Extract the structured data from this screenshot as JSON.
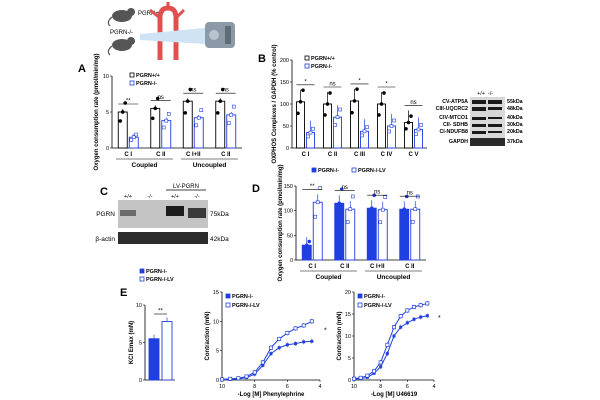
{
  "schematic": {
    "genotype_wt": "PGRN+/+",
    "genotype_ko": "PGRN-/-"
  },
  "panel_labels": {
    "A": "A",
    "B": "B",
    "C": "C",
    "D": "D",
    "E": "E"
  },
  "panelA": {
    "ylabel": "Oxygen consumption rate (pmol/min/mg)",
    "legend": [
      "PGRN+/+",
      "PGRN-/-"
    ],
    "xticks": [
      "C I",
      "C II",
      "C I+II",
      "C II"
    ],
    "groups": [
      "Coupled",
      "Uncoupled"
    ],
    "significance": [
      "**",
      "ns",
      "ns",
      "ns"
    ]
  },
  "panelB": {
    "ylabel": "OXPHOS Complexes / GAPDH (% control)",
    "legend": [
      "PGRN+/+",
      "PGRN-/-"
    ],
    "xticks": [
      "C I",
      "C II",
      "C III",
      "C IV",
      "C V"
    ],
    "significance": [
      "*",
      "ns",
      "*",
      "*",
      "ns"
    ],
    "blot_header": [
      "+/+",
      "-/-"
    ],
    "blot_left": [
      "CV-ATP5A",
      "CIII-UQCRC2",
      "CIV-MTCO1",
      "CII- SDHB",
      "CI-NDUFB8",
      "GAPDH"
    ],
    "blot_right": [
      "55kDa",
      "48kDa",
      "40kDa",
      "30kDa",
      "20kDa",
      "37kDa"
    ]
  },
  "panelC": {
    "title": "LV-PGRN",
    "lanes": [
      "+/+",
      "-/-",
      "+/+",
      "-/-"
    ],
    "rows": [
      "PGRN",
      "β-actin"
    ],
    "sizes": [
      "75kDa",
      "42kDa"
    ]
  },
  "panelD": {
    "ylabel": "Oxygen consumption rate (pmol/min/mg)",
    "legend": [
      "PGRN-/-",
      "PGRN-/-LV"
    ],
    "xticks": [
      "C I",
      "C II",
      "C I+II",
      "C II"
    ],
    "groups": [
      "Coupled",
      "Uncoupled"
    ],
    "significance": [
      "**",
      "ns",
      "ns",
      "ns"
    ]
  },
  "panelE": {
    "legend": [
      "PGRN-/-",
      "PGRN-/-LV"
    ],
    "kcl_ylabel": "KCl Emax (mN)",
    "kcl_sig": "**",
    "curve1_ylabel": "Contraction (mN)",
    "curve1_xlabel": "-Log [M] Phenylephrine",
    "curve1_sig": "*",
    "curve2_ylabel": "Contraction (mN)",
    "curve2_xlabel": "-Log [M] U46619",
    "curve2_sig": "*"
  },
  "chart_data": [
    {
      "type": "bar",
      "panel": "A",
      "categories": [
        "C I",
        "C II",
        "C I+II",
        "C II"
      ],
      "series": [
        {
          "name": "PGRN+/+",
          "values": [
            5,
            5.5,
            6.5,
            6.5
          ]
        },
        {
          "name": "PGRN-/-",
          "values": [
            1.5,
            3.8,
            4.2,
            4.6
          ]
        }
      ],
      "ylim": [
        0,
        10
      ]
    },
    {
      "type": "bar",
      "panel": "B",
      "categories": [
        "C I",
        "C II",
        "C III",
        "C IV",
        "C V"
      ],
      "series": [
        {
          "name": "PGRN+/+",
          "values": [
            105,
            100,
            107,
            100,
            58
          ]
        },
        {
          "name": "PGRN-/-",
          "values": [
            35,
            70,
            38,
            50,
            42
          ]
        }
      ],
      "ylim": [
        0,
        200
      ]
    },
    {
      "type": "bar",
      "panel": "D",
      "categories": [
        "C I",
        "C II",
        "C I+II",
        "C II"
      ],
      "series": [
        {
          "name": "PGRN-/-",
          "values": [
            30,
            115,
            105,
            103
          ]
        },
        {
          "name": "PGRN-/-LV",
          "values": [
            117,
            103,
            102,
            103
          ]
        }
      ],
      "ylim": [
        0,
        150
      ]
    },
    {
      "type": "bar",
      "panel": "E-KCl",
      "categories": [
        "PGRN-/-",
        "PGRN-/-LV"
      ],
      "values": [
        5.5,
        7.8
      ],
      "ylim": [
        0,
        10
      ]
    },
    {
      "type": "line",
      "panel": "E-Phenylephrine",
      "x": [
        10,
        9.5,
        9,
        8.5,
        8,
        7.5,
        7,
        6.5,
        6,
        5.5,
        5,
        4.5
      ],
      "series": [
        {
          "name": "PGRN-/-",
          "values": [
            0.1,
            0.1,
            0.2,
            0.4,
            1,
            2.5,
            4.5,
            5.5,
            6,
            6.2,
            6.5,
            6.6
          ]
        },
        {
          "name": "PGRN-/-LV",
          "values": [
            0.1,
            0.2,
            0.3,
            0.6,
            1.3,
            3,
            5.5,
            7,
            8,
            8.8,
            9.3,
            10
          ]
        }
      ],
      "xlim": [
        10,
        4
      ],
      "ylim": [
        0,
        15
      ]
    },
    {
      "type": "line",
      "panel": "E-U46619",
      "x": [
        10,
        9.5,
        9,
        8.5,
        8,
        7.5,
        7,
        6.5,
        6,
        5.5,
        5,
        4.5
      ],
      "series": [
        {
          "name": "PGRN-/-",
          "values": [
            0.2,
            0.3,
            0.6,
            1.5,
            3,
            6,
            10,
            12,
            13,
            13.8,
            14.3,
            14.6
          ]
        },
        {
          "name": "PGRN-/-LV",
          "values": [
            0.3,
            0.5,
            1,
            2,
            4,
            8,
            12,
            14.5,
            15.8,
            16.6,
            17,
            17.4
          ]
        }
      ],
      "xlim": [
        10,
        4
      ],
      "ylim": [
        0,
        20
      ]
    }
  ]
}
